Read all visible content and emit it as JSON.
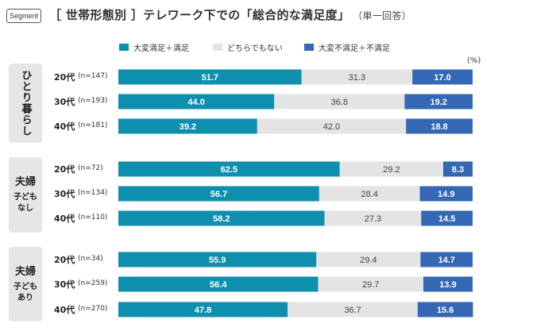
{
  "tag": "Segment",
  "title": "［ 世帯形態別 ］テレワーク下での「総合的な満足度」",
  "subtitle": "（単一回答）",
  "unit": "(%)",
  "colors": {
    "satisfied": "#0f8fae",
    "neutral": "#e4e4e4",
    "dissatisfied": "#3468b5"
  },
  "legend": [
    {
      "label": "大変満足＋満足",
      "color": "#0f8fae"
    },
    {
      "label": "どちらでもない",
      "color": "#e4e4e4"
    },
    {
      "label": "大変不満足＋不満足",
      "color": "#3468b5"
    }
  ],
  "groups": [
    {
      "label": "ひとり暮らし",
      "sublabel": ""
    },
    {
      "label": "夫婦",
      "sublabel": "子ども\nなし"
    },
    {
      "label": "夫婦",
      "sublabel": "子ども\nあり"
    }
  ],
  "chart_data": {
    "type": "bar",
    "stacked": true,
    "orientation": "horizontal",
    "xlim": [
      0,
      100
    ],
    "series_names": [
      "大変満足＋満足",
      "どちらでもない",
      "大変不満足＋不満足"
    ],
    "rows": [
      {
        "group": "ひとり暮らし",
        "age": "20代",
        "n": "(n=147)",
        "values": [
          51.7,
          31.3,
          17.0
        ]
      },
      {
        "group": "ひとり暮らし",
        "age": "30代",
        "n": "(n=193)",
        "values": [
          44.0,
          36.8,
          19.2
        ]
      },
      {
        "group": "ひとり暮らし",
        "age": "40代",
        "n": "(n=181)",
        "values": [
          39.2,
          42.0,
          18.8
        ]
      },
      {
        "group": "夫婦 子どもなし",
        "age": "20代",
        "n": "(n=72)",
        "values": [
          62.5,
          29.2,
          8.3
        ]
      },
      {
        "group": "夫婦 子どもなし",
        "age": "30代",
        "n": "(n=134)",
        "values": [
          56.7,
          28.4,
          14.9
        ]
      },
      {
        "group": "夫婦 子どもなし",
        "age": "40代",
        "n": "(n=110)",
        "values": [
          58.2,
          27.3,
          14.5
        ]
      },
      {
        "group": "夫婦 子どもあり",
        "age": "20代",
        "n": "(n=34)",
        "values": [
          55.9,
          29.4,
          14.7
        ]
      },
      {
        "group": "夫婦 子どもあり",
        "age": "30代",
        "n": "(n=259)",
        "values": [
          56.4,
          29.7,
          13.9
        ]
      },
      {
        "group": "夫婦 子どもあり",
        "age": "40代",
        "n": "(n=270)",
        "values": [
          47.8,
          36.7,
          15.6
        ]
      }
    ]
  }
}
